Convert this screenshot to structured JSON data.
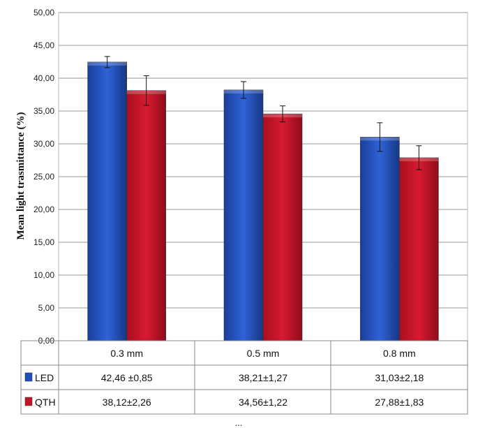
{
  "chart_data": {
    "type": "bar",
    "title": "",
    "xlabel": "",
    "ylabel": "Mean light trasmittance (%)",
    "ylim": [
      0,
      50
    ],
    "yticks": [
      "0,00",
      "5,00",
      "10,00",
      "15,00",
      "20,00",
      "25,00",
      "30,00",
      "35,00",
      "40,00",
      "45,00",
      "50,00"
    ],
    "grid": true,
    "categories": [
      "0.3 mm",
      "0.5 mm",
      "0.8 mm"
    ],
    "series": [
      {
        "name": "LED",
        "color": "#1f4fb8",
        "values": [
          42.46,
          38.21,
          31.03
        ],
        "errors": [
          0.85,
          1.27,
          2.18
        ],
        "labels": [
          "42,46 ±0,85",
          "38,21±1,27",
          "31,03±2,18"
        ]
      },
      {
        "name": "QTH",
        "color": "#c01427",
        "values": [
          38.12,
          34.56,
          27.88
        ],
        "errors": [
          2.26,
          1.22,
          1.83
        ],
        "labels": [
          "38,12±2,26",
          "34,56±1,22",
          "27,88±1,83"
        ]
      }
    ],
    "caption_fragment": "..."
  }
}
